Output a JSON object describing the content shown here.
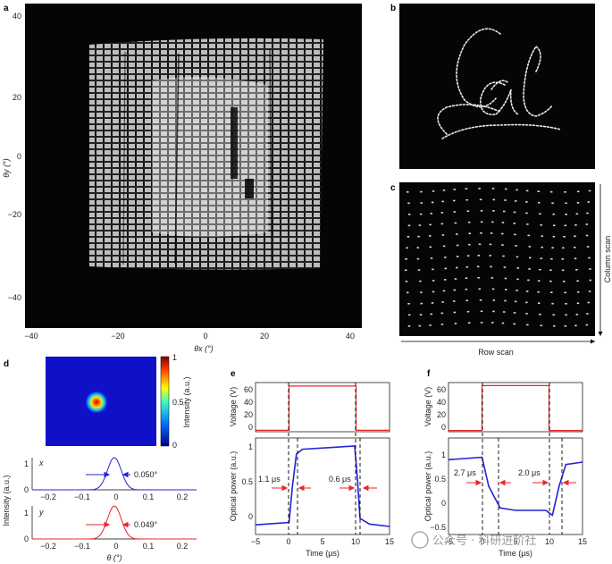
{
  "panels": {
    "a": {
      "label": "a",
      "xlabel": "θx (°)",
      "ylabel": "θy (°)",
      "xticks": [
        "−40",
        "−20",
        "0",
        "20",
        "40"
      ],
      "yticks": [
        "40",
        "20",
        "0",
        "−20",
        "−40"
      ]
    },
    "b": {
      "label": "b"
    },
    "c": {
      "label": "c",
      "xlabel": "Row scan",
      "ylabel": "Column scan"
    },
    "d": {
      "label": "d",
      "colorbar_label": "Intensity (a.u.)",
      "colorbar_ticks": [
        "1",
        "0.5",
        "0"
      ],
      "ylabel": "Intensity (a.u.)",
      "xlabel": "θ (°)",
      "x_row": {
        "label": "x",
        "fwhm": "0.050°"
      },
      "y_row": {
        "label": "y",
        "fwhm": "0.049°"
      },
      "xticks": [
        "−0.2",
        "−0.1",
        "0",
        "0.1",
        "0.2"
      ],
      "yticks": [
        "1",
        "0"
      ]
    },
    "e": {
      "label": "e",
      "voltage_label": "Voltage (V)",
      "voltage_ticks": [
        "60",
        "40",
        "20",
        "0"
      ],
      "power_label": "Optical power (a.u.)",
      "power_ticks": [
        "1",
        "0.5",
        "0"
      ],
      "xlabel": "Time (μs)",
      "xticks": [
        "−5",
        "0",
        "5",
        "10",
        "15"
      ],
      "rise": "1.1 μs",
      "fall": "0.6 μs"
    },
    "f": {
      "label": "f",
      "voltage_label": "Voltage (V)",
      "voltage_ticks": [
        "60",
        "40",
        "20",
        "0"
      ],
      "power_label": "Optical power (a.u.)",
      "power_ticks": [
        "1",
        "0.5",
        "0",
        "−0.5"
      ],
      "xlabel": "Time (μs)",
      "xticks": [
        "−5",
        "0",
        "5",
        "10",
        "15"
      ],
      "fall": "2.7 μs",
      "rise": "2.0 μs"
    }
  },
  "watermark": "公众号 · 科研进阶社",
  "colors": {
    "voltage": "#e8262b",
    "power": "#2323d6",
    "red_arrow": "#e8262b",
    "blue_arrow": "#2323d6"
  },
  "chart_data": [
    {
      "type": "line",
      "panel": "d-x",
      "x": [
        -0.2,
        -0.1,
        -0.05,
        -0.025,
        0,
        0.025,
        0.05,
        0.1,
        0.2
      ],
      "values": [
        0,
        0.02,
        0.2,
        0.6,
        1,
        0.6,
        0.2,
        0.02,
        0
      ],
      "ylim": [
        0,
        1
      ],
      "xlim": [
        -0.25,
        0.25
      ]
    },
    {
      "type": "line",
      "panel": "d-y",
      "x": [
        -0.2,
        -0.1,
        -0.05,
        -0.025,
        0,
        0.025,
        0.05,
        0.1,
        0.2
      ],
      "values": [
        0,
        0.02,
        0.2,
        0.6,
        1,
        0.6,
        0.2,
        0.02,
        0
      ],
      "ylim": [
        0,
        1
      ],
      "xlim": [
        -0.25,
        0.25
      ]
    },
    {
      "type": "line",
      "panel": "e-voltage",
      "x": [
        -5,
        0,
        0,
        10,
        10,
        15
      ],
      "values": [
        2,
        2,
        65,
        65,
        2,
        2
      ],
      "ylim": [
        0,
        70
      ],
      "xlim": [
        -5,
        15
      ]
    },
    {
      "type": "line",
      "panel": "e-power",
      "x": [
        -5,
        0,
        0.5,
        1.1,
        2,
        9.8,
        10.2,
        10.6,
        12,
        15
      ],
      "values": [
        0.02,
        0.05,
        0.5,
        0.9,
        0.96,
        1.0,
        0.6,
        0.1,
        0.03,
        0
      ],
      "ylim": [
        -0.1,
        1.1
      ],
      "xlim": [
        -5,
        15
      ]
    },
    {
      "type": "line",
      "panel": "f-voltage",
      "x": [
        -5,
        0,
        0,
        10,
        10,
        15
      ],
      "values": [
        2,
        2,
        75,
        75,
        2,
        2
      ],
      "ylim": [
        0,
        80
      ],
      "xlim": [
        -5,
        15
      ]
    },
    {
      "type": "line",
      "panel": "f-power",
      "x": [
        -5,
        0,
        1,
        2.7,
        5,
        9.5,
        10.5,
        11.5,
        12.5,
        15
      ],
      "values": [
        1.05,
        1.1,
        0.5,
        0.05,
        0,
        0,
        -0.1,
        0.5,
        0.95,
        1.0
      ],
      "ylim": [
        -0.5,
        1.5
      ],
      "xlim": [
        -5,
        15
      ]
    }
  ]
}
